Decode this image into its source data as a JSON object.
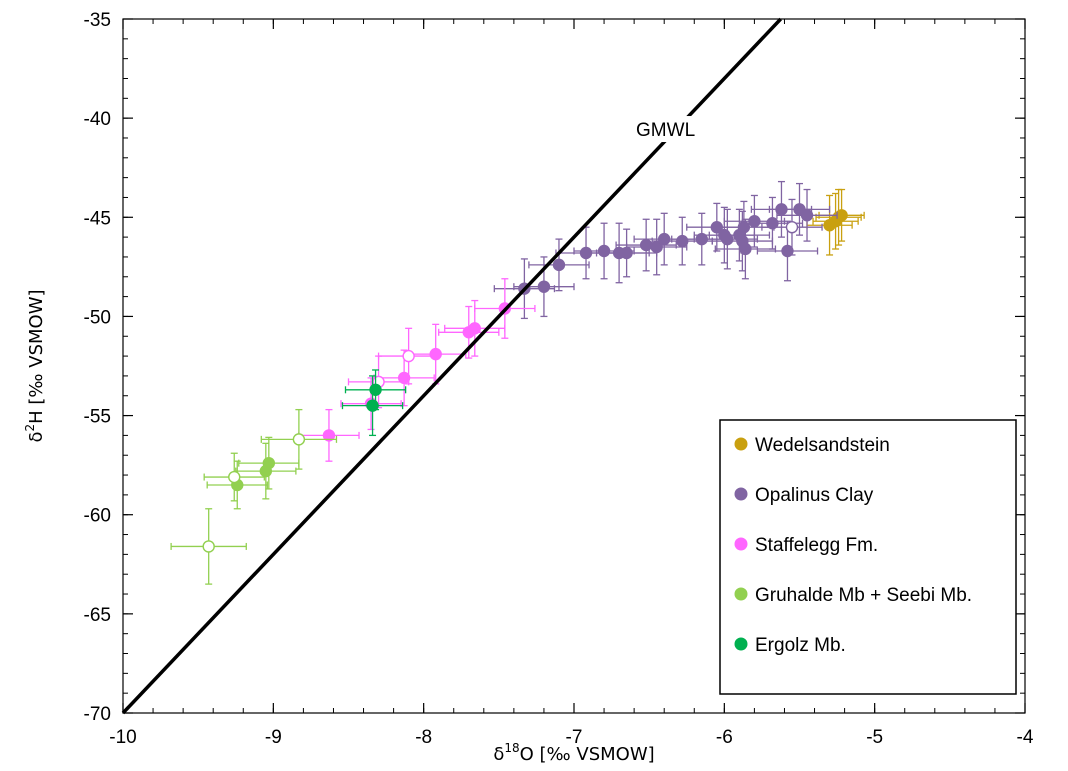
{
  "chart_data": {
    "type": "scatter",
    "xlabel": {
      "prefix": "δ",
      "sup": "18",
      "main": "O [‰ VSMOW]"
    },
    "ylabel": {
      "prefix": "δ",
      "sup": "2",
      "main": "H [‰ VSMOW]"
    },
    "xlim": [
      -10,
      -4
    ],
    "ylim": [
      -70,
      -35
    ],
    "x_ticks": [
      -10,
      -9,
      -8,
      -7,
      -6,
      -5,
      -4
    ],
    "y_ticks": [
      -70,
      -65,
      -60,
      -55,
      -50,
      -45,
      -40,
      -35
    ],
    "grid": false,
    "legend_position": "bottom-right",
    "reference_line": {
      "label": "GMWL",
      "slope": 8,
      "intercept": 10
    },
    "series": [
      {
        "name": "Wedelsandstein",
        "color": "#C9A010",
        "points": [
          {
            "x": -5.3,
            "y": -45.4,
            "xerr": 0.15,
            "yerr": 1.5,
            "filled": true
          },
          {
            "x": -5.26,
            "y": -45.2,
            "xerr": 0.15,
            "yerr": 1.4,
            "filled": true
          },
          {
            "x": -5.24,
            "y": -45.0,
            "xerr": 0.15,
            "yerr": 1.4,
            "filled": true
          },
          {
            "x": -5.22,
            "y": -44.9,
            "xerr": 0.15,
            "yerr": 1.3,
            "filled": true
          }
        ]
      },
      {
        "name": "Opalinus Clay",
        "color": "#8064A2",
        "points": [
          {
            "x": -7.33,
            "y": -48.6,
            "xerr": 0.2,
            "yerr": 1.5,
            "filled": true
          },
          {
            "x": -7.2,
            "y": -48.5,
            "xerr": 0.2,
            "yerr": 1.5,
            "filled": true
          },
          {
            "x": -7.1,
            "y": -47.4,
            "xerr": 0.2,
            "yerr": 1.3,
            "filled": true
          },
          {
            "x": -6.92,
            "y": -46.8,
            "xerr": 0.2,
            "yerr": 1.3,
            "filled": true
          },
          {
            "x": -6.8,
            "y": -46.7,
            "xerr": 0.2,
            "yerr": 1.4,
            "filled": true
          },
          {
            "x": -6.7,
            "y": -46.8,
            "xerr": 0.2,
            "yerr": 1.5,
            "filled": true
          },
          {
            "x": -6.65,
            "y": -46.8,
            "xerr": 0.2,
            "yerr": 1.2,
            "filled": true
          },
          {
            "x": -6.52,
            "y": -46.4,
            "xerr": 0.2,
            "yerr": 1.3,
            "filled": true
          },
          {
            "x": -6.45,
            "y": -46.5,
            "xerr": 0.2,
            "yerr": 1.4,
            "filled": true
          },
          {
            "x": -6.4,
            "y": -46.1,
            "xerr": 0.2,
            "yerr": 1.3,
            "filled": true
          },
          {
            "x": -6.28,
            "y": -46.2,
            "xerr": 0.2,
            "yerr": 1.2,
            "filled": true
          },
          {
            "x": -6.15,
            "y": -46.1,
            "xerr": 0.2,
            "yerr": 1.3,
            "filled": true
          },
          {
            "x": -6.05,
            "y": -45.5,
            "xerr": 0.2,
            "yerr": 1.2,
            "filled": true
          },
          {
            "x": -6.0,
            "y": -45.9,
            "xerr": 0.2,
            "yerr": 1.4,
            "filled": true
          },
          {
            "x": -5.98,
            "y": -46.1,
            "xerr": 0.2,
            "yerr": 1.5,
            "filled": true
          },
          {
            "x": -5.9,
            "y": -45.9,
            "xerr": 0.2,
            "yerr": 1.3,
            "filled": true
          },
          {
            "x": -5.88,
            "y": -46.2,
            "xerr": 0.2,
            "yerr": 1.5,
            "filled": true
          },
          {
            "x": -5.87,
            "y": -45.5,
            "xerr": 0.2,
            "yerr": 1.3,
            "filled": true
          },
          {
            "x": -5.86,
            "y": -46.6,
            "xerr": 0.2,
            "yerr": 1.5,
            "filled": true
          },
          {
            "x": -5.8,
            "y": -45.2,
            "xerr": 0.2,
            "yerr": 1.3,
            "filled": true
          },
          {
            "x": -5.68,
            "y": -45.3,
            "xerr": 0.2,
            "yerr": 1.3,
            "filled": true
          },
          {
            "x": -5.62,
            "y": -44.6,
            "xerr": 0.2,
            "yerr": 1.4,
            "filled": true
          },
          {
            "x": -5.58,
            "y": -46.7,
            "xerr": 0.2,
            "yerr": 1.5,
            "filled": true
          },
          {
            "x": -5.5,
            "y": -44.6,
            "xerr": 0.2,
            "yerr": 1.3,
            "filled": true
          },
          {
            "x": -5.45,
            "y": -44.9,
            "xerr": 0.2,
            "yerr": 1.3,
            "filled": true
          },
          {
            "x": -5.55,
            "y": -45.5,
            "xerr": 0.2,
            "yerr": 1.4,
            "filled": false
          }
        ]
      },
      {
        "name": "Staffelegg Fm.",
        "color": "#FF66FF",
        "points": [
          {
            "x": -8.63,
            "y": -56.0,
            "xerr": 0.2,
            "yerr": 1.3,
            "filled": true
          },
          {
            "x": -8.35,
            "y": -54.4,
            "xerr": 0.2,
            "yerr": 1.3,
            "filled": true
          },
          {
            "x": -8.13,
            "y": -53.1,
            "xerr": 0.2,
            "yerr": 1.4,
            "filled": true
          },
          {
            "x": -7.92,
            "y": -51.9,
            "xerr": 0.2,
            "yerr": 1.5,
            "filled": true
          },
          {
            "x": -7.7,
            "y": -50.8,
            "xerr": 0.2,
            "yerr": 1.3,
            "filled": true
          },
          {
            "x": -7.66,
            "y": -50.6,
            "xerr": 0.2,
            "yerr": 1.4,
            "filled": true
          },
          {
            "x": -7.46,
            "y": -49.6,
            "xerr": 0.2,
            "yerr": 1.5,
            "filled": true
          },
          {
            "x": -8.3,
            "y": -53.3,
            "xerr": 0.2,
            "yerr": 1.3,
            "filled": false
          },
          {
            "x": -8.1,
            "y": -52.0,
            "xerr": 0.2,
            "yerr": 1.4,
            "filled": false
          }
        ]
      },
      {
        "name": "Gruhalde Mb + Seebi Mb.",
        "color": "#92D050",
        "points": [
          {
            "x": -9.24,
            "y": -58.5,
            "xerr": 0.2,
            "yerr": 1.2,
            "filled": true
          },
          {
            "x": -9.05,
            "y": -57.8,
            "xerr": 0.2,
            "yerr": 1.4,
            "filled": true
          },
          {
            "x": -9.03,
            "y": -57.4,
            "xerr": 0.2,
            "yerr": 1.3,
            "filled": true
          },
          {
            "x": -9.43,
            "y": -61.6,
            "xerr": 0.25,
            "yerr": 1.9,
            "filled": false
          },
          {
            "x": -9.26,
            "y": -58.1,
            "xerr": 0.2,
            "yerr": 1.2,
            "filled": false
          },
          {
            "x": -8.83,
            "y": -56.2,
            "xerr": 0.25,
            "yerr": 1.5,
            "filled": false
          }
        ]
      },
      {
        "name": "Ergolz Mb.",
        "color": "#00B050",
        "points": [
          {
            "x": -8.34,
            "y": -54.5,
            "xerr": 0.2,
            "yerr": 1.5,
            "filled": true
          },
          {
            "x": -8.32,
            "y": -53.7,
            "xerr": 0.2,
            "yerr": 1.0,
            "filled": true
          }
        ]
      }
    ]
  }
}
